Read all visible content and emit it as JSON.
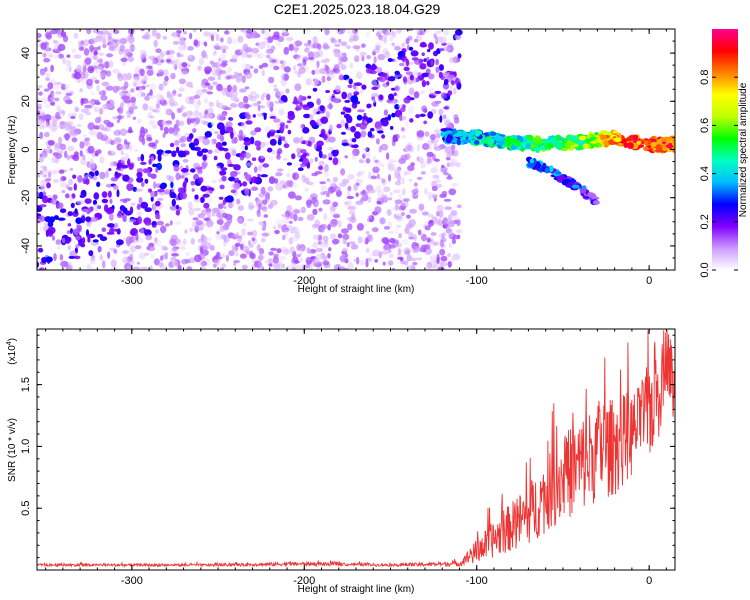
{
  "chart_data": [
    {
      "type": "heatmap",
      "title": "C2E1.2025.023.18.04.G29",
      "xlabel": "Height of straight line (km)",
      "ylabel": "Frequency (Hz)",
      "xlim": [
        -355,
        15
      ],
      "ylim": [
        -50,
        50
      ],
      "xticks": [
        "-300",
        "-200",
        "-100",
        "0"
      ],
      "yticks": [
        "-40",
        "-20",
        "0",
        "20",
        "40"
      ],
      "colorbar": {
        "label": "Normalized spectral amplitude",
        "range": [
          0,
          1
        ],
        "ticks": [
          "0.0",
          "0.2",
          "0.4",
          "0.6",
          "0.8"
        ],
        "colors": [
          "#ffffff",
          "#cc99ff",
          "#7f00ff",
          "#0000ff",
          "#00bfff",
          "#00ffc0",
          "#00ff00",
          "#c0ff00",
          "#ffff00",
          "#ff8000",
          "#ff0000",
          "#ff0090"
        ]
      },
      "regions": [
        {
          "desc": "diffuse purple speckle",
          "x_range": [
            -355,
            -110
          ],
          "freq_range": [
            -50,
            50
          ],
          "amplitude": 0.15
        },
        {
          "desc": "strong narrowband line",
          "x": [
            -120,
            -100,
            -80,
            -60,
            -40,
            -20,
            0,
            15
          ],
          "freq": [
            6,
            5,
            3,
            2,
            3,
            5,
            2,
            2
          ],
          "amplitude": [
            0.3,
            0.4,
            0.45,
            0.5,
            0.55,
            0.8,
            0.9,
            0.85
          ]
        },
        {
          "desc": "secondary trail",
          "x": [
            -70,
            -60,
            -50,
            -40,
            -30
          ],
          "freq": [
            -5,
            -8,
            -12,
            -16,
            -22
          ],
          "amplitude": [
            0.3,
            0.3,
            0.28,
            0.25,
            0.15
          ]
        }
      ]
    },
    {
      "type": "line",
      "xlabel": "Height of straight line (km)",
      "ylabel": "SNR (10 * v/v)",
      "scale_note": "(x10",
      "scale_exp": "4",
      "xlim": [
        -355,
        15
      ],
      "ylim": [
        0,
        1.95
      ],
      "xticks": [
        "-300",
        "-200",
        "-100",
        "0"
      ],
      "yticks": [
        "0.5",
        "1.0",
        "1.5"
      ],
      "color": "#ee3333",
      "series": [
        {
          "x": [
            -355,
            -300,
            -250,
            -200,
            -150,
            -110,
            -100,
            -90,
            -80,
            -70,
            -60,
            -50,
            -40,
            -30,
            -20,
            -10,
            -5,
            0,
            5,
            10,
            15
          ],
          "y": [
            0.04,
            0.04,
            0.04,
            0.05,
            0.04,
            0.05,
            0.15,
            0.25,
            0.35,
            0.45,
            0.6,
            0.75,
            0.85,
            0.95,
            1.0,
            1.1,
            1.2,
            1.3,
            1.45,
            1.8,
            1.4
          ],
          "noise": [
            0.01,
            0.01,
            0.01,
            0.015,
            0.01,
            0.02,
            0.1,
            0.15,
            0.2,
            0.25,
            0.3,
            0.35,
            0.4,
            0.4,
            0.4,
            0.35,
            0.3,
            0.4,
            0.5,
            0.3,
            0.3
          ]
        }
      ]
    }
  ]
}
